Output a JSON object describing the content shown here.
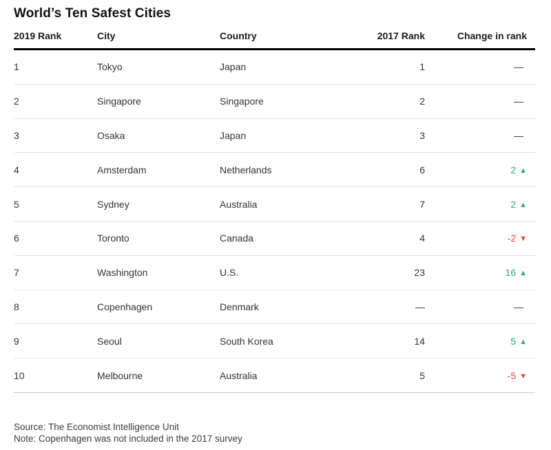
{
  "title": "World’s Ten Safest Cities",
  "colors": {
    "positive": "#2daa78",
    "negative": "#e04a38",
    "neutral": "#333333"
  },
  "chart_data": {
    "type": "table",
    "title": "World’s Ten Safest Cities",
    "columns": {
      "rank2019": "2019 Rank",
      "city": "City",
      "country": "Country",
      "rank2017": "2017 Rank",
      "change": "Change in rank"
    },
    "rows": [
      {
        "rank2019": "1",
        "city": "Tokyo",
        "country": "Japan",
        "rank2017": "1",
        "change": {
          "value": "—",
          "arrow": "",
          "color": "#333333"
        }
      },
      {
        "rank2019": "2",
        "city": "Singapore",
        "country": "Singapore",
        "rank2017": "2",
        "change": {
          "value": "—",
          "arrow": "",
          "color": "#333333"
        }
      },
      {
        "rank2019": "3",
        "city": "Osaka",
        "country": "Japan",
        "rank2017": "3",
        "change": {
          "value": "—",
          "arrow": "",
          "color": "#333333"
        }
      },
      {
        "rank2019": "4",
        "city": "Amsterdam",
        "country": "Netherlands",
        "rank2017": "6",
        "change": {
          "value": "2",
          "arrow": "▲",
          "color": "#2daa78"
        }
      },
      {
        "rank2019": "5",
        "city": "Sydney",
        "country": "Australia",
        "rank2017": "7",
        "change": {
          "value": "2",
          "arrow": "▲",
          "color": "#2daa78"
        }
      },
      {
        "rank2019": "6",
        "city": "Toronto",
        "country": "Canada",
        "rank2017": "4",
        "change": {
          "value": "-2",
          "arrow": "▼",
          "color": "#e04a38"
        }
      },
      {
        "rank2019": "7",
        "city": "Washington",
        "country": "U.S.",
        "rank2017": "23",
        "change": {
          "value": "16",
          "arrow": "▲",
          "color": "#2daa78"
        }
      },
      {
        "rank2019": "8",
        "city": "Copenhagen",
        "country": "Denmark",
        "rank2017": "—",
        "change": {
          "value": "—",
          "arrow": "",
          "color": "#333333"
        }
      },
      {
        "rank2019": "9",
        "city": "Seoul",
        "country": "South Korea",
        "rank2017": "14",
        "change": {
          "value": "5",
          "arrow": "▲",
          "color": "#2daa78"
        }
      },
      {
        "rank2019": "10",
        "city": "Melbourne",
        "country": "Australia",
        "rank2017": "5",
        "change": {
          "value": "-5",
          "arrow": "▼",
          "color": "#e04a38"
        }
      }
    ]
  },
  "footer": {
    "source": "Source: The Economist Intelligence Unit",
    "note": "Note: Copenhagen was not included in the 2017 survey"
  }
}
